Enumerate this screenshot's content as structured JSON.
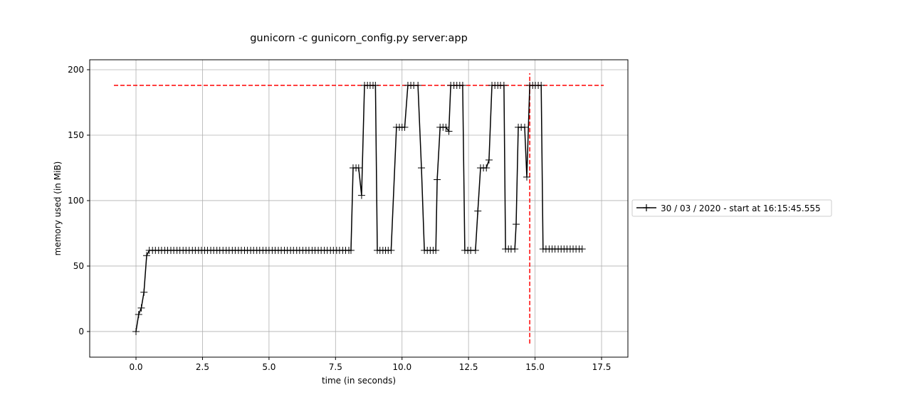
{
  "chart_data": {
    "type": "line",
    "title": "gunicorn -c gunicorn_config.py server:app",
    "xlabel": "time (in seconds)",
    "ylabel": "memory used (in MiB)",
    "xlim": [
      -1.74,
      18.49
    ],
    "ylim": [
      -19.6,
      207.6
    ],
    "xticks": [
      "0.0",
      "2.5",
      "5.0",
      "7.5",
      "10.0",
      "12.5",
      "15.0",
      "17.5"
    ],
    "yticks": [
      "0",
      "50",
      "100",
      "150",
      "200"
    ],
    "grid": true,
    "legend_position": "right, outside plot",
    "series": [
      {
        "name": "30 / 03 / 2020 - start at 16:15:45.555",
        "color": "#000000",
        "marker": "+",
        "x": [
          0,
          0.1,
          0.2,
          0.3,
          0.4,
          0.5,
          0.62,
          0.73,
          0.85,
          0.96,
          1.08,
          1.19,
          1.31,
          1.42,
          1.54,
          1.65,
          1.77,
          1.88,
          2.0,
          2.12,
          2.23,
          2.35,
          2.46,
          2.58,
          2.69,
          2.81,
          2.92,
          3.04,
          3.15,
          3.27,
          3.39,
          3.5,
          3.62,
          3.73,
          3.85,
          3.96,
          4.08,
          4.19,
          4.31,
          4.42,
          4.54,
          4.65,
          4.77,
          4.89,
          5.0,
          5.12,
          5.23,
          5.35,
          5.46,
          5.58,
          5.69,
          5.81,
          5.92,
          6.04,
          6.15,
          6.27,
          6.39,
          6.5,
          6.62,
          6.73,
          6.85,
          6.96,
          7.08,
          7.19,
          7.31,
          7.42,
          7.54,
          7.65,
          7.77,
          7.88,
          8.0,
          8.08,
          8.16,
          8.27,
          8.37,
          8.48,
          8.59,
          8.7,
          8.8,
          8.91,
          9.0,
          9.07,
          9.17,
          9.28,
          9.38,
          9.48,
          9.59,
          9.79,
          9.9,
          10.0,
          10.1,
          10.22,
          10.33,
          10.44,
          10.6,
          10.73,
          10.84,
          10.95,
          11.06,
          11.17,
          11.27,
          11.32,
          11.43,
          11.54,
          11.65,
          11.76,
          11.83,
          11.95,
          12.06,
          12.17,
          12.28,
          12.36,
          12.47,
          12.58,
          12.76,
          12.85,
          12.95,
          13.06,
          13.17,
          13.27,
          13.38,
          13.49,
          13.6,
          13.7,
          13.83,
          13.89,
          14.0,
          14.1,
          14.24,
          14.29,
          14.37,
          14.48,
          14.61,
          14.69,
          14.8,
          14.91,
          15.01,
          15.12,
          15.23,
          15.3,
          15.41,
          15.53,
          15.64,
          15.75,
          15.87,
          15.98,
          16.09,
          16.2,
          16.32,
          16.43,
          16.54,
          16.66,
          16.77
        ],
        "y": [
          0,
          13,
          18,
          30,
          58,
          62,
          62,
          62,
          62,
          62,
          62,
          62,
          62,
          62,
          62,
          62,
          62,
          62,
          62,
          62,
          62,
          62,
          62,
          62,
          62,
          62,
          62,
          62,
          62,
          62,
          62,
          62,
          62,
          62,
          62,
          62,
          62,
          62,
          62,
          62,
          62,
          62,
          62,
          62,
          62,
          62,
          62,
          62,
          62,
          62,
          62,
          62,
          62,
          62,
          62,
          62,
          62,
          62,
          62,
          62,
          62,
          62,
          62,
          62,
          62,
          62,
          62,
          62,
          62,
          62,
          62,
          62,
          125,
          125,
          125,
          104,
          188,
          188,
          188,
          188,
          188,
          62,
          62,
          62,
          62,
          62,
          62,
          156,
          156,
          156,
          156,
          188,
          188,
          188,
          188,
          125,
          62,
          62,
          62,
          62,
          62,
          116,
          156,
          156,
          156,
          153,
          188,
          188,
          188,
          188,
          188,
          62,
          62,
          62,
          62,
          92,
          125,
          125,
          125,
          131,
          188,
          188,
          188,
          188,
          188,
          63,
          63,
          63,
          63,
          82,
          156,
          156,
          156,
          118,
          188,
          188,
          188,
          188,
          188,
          63,
          63,
          63,
          63,
          63,
          63,
          63,
          63,
          63,
          63,
          63,
          63,
          63,
          63
        ]
      }
    ],
    "reference_lines": [
      {
        "orientation": "horizontal",
        "value": 188,
        "from": -0.83,
        "to": 17.58,
        "color": "#ff0000",
        "style": "dashed"
      },
      {
        "orientation": "vertical",
        "value": 14.8,
        "from": -9.2,
        "to": 197.3,
        "color": "#ff0000",
        "style": "dashed"
      }
    ]
  }
}
